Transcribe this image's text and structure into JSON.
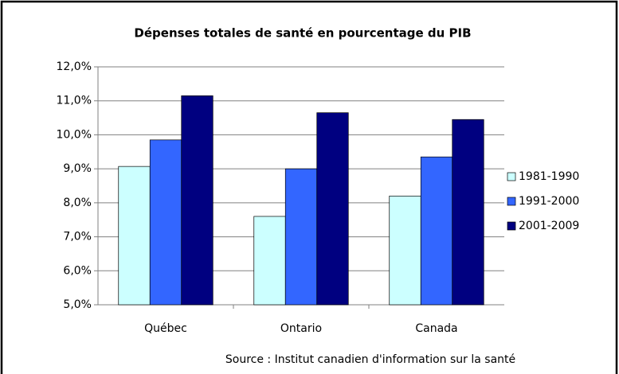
{
  "chart_data": {
    "type": "bar",
    "title": "Dépenses totales de santé en pourcentage du PIB",
    "source": "Source : Institut canadien d'information sur la santé",
    "categories": [
      "Québec",
      "Ontario",
      "Canada"
    ],
    "series": [
      {
        "name": "1981-1990",
        "color": "#ccffff",
        "values": [
          9.07,
          7.6,
          8.2
        ]
      },
      {
        "name": "1991-2000",
        "color": "#3366ff",
        "values": [
          9.85,
          9.0,
          9.35
        ]
      },
      {
        "name": "2001-2009",
        "color": "#000080",
        "values": [
          11.15,
          10.65,
          10.45
        ]
      }
    ],
    "ylim": [
      5,
      12
    ],
    "yticks": [
      {
        "value": 5,
        "label": "5,0%"
      },
      {
        "value": 6,
        "label": "6,0%"
      },
      {
        "value": 7,
        "label": "7,0%"
      },
      {
        "value": 8,
        "label": "8,0%"
      },
      {
        "value": 9,
        "label": "9,0%"
      },
      {
        "value": 10,
        "label": "10,0%"
      },
      {
        "value": 11,
        "label": "11,0%"
      },
      {
        "value": 12,
        "label": "12,0%"
      }
    ],
    "grid": true,
    "legend": "right"
  }
}
